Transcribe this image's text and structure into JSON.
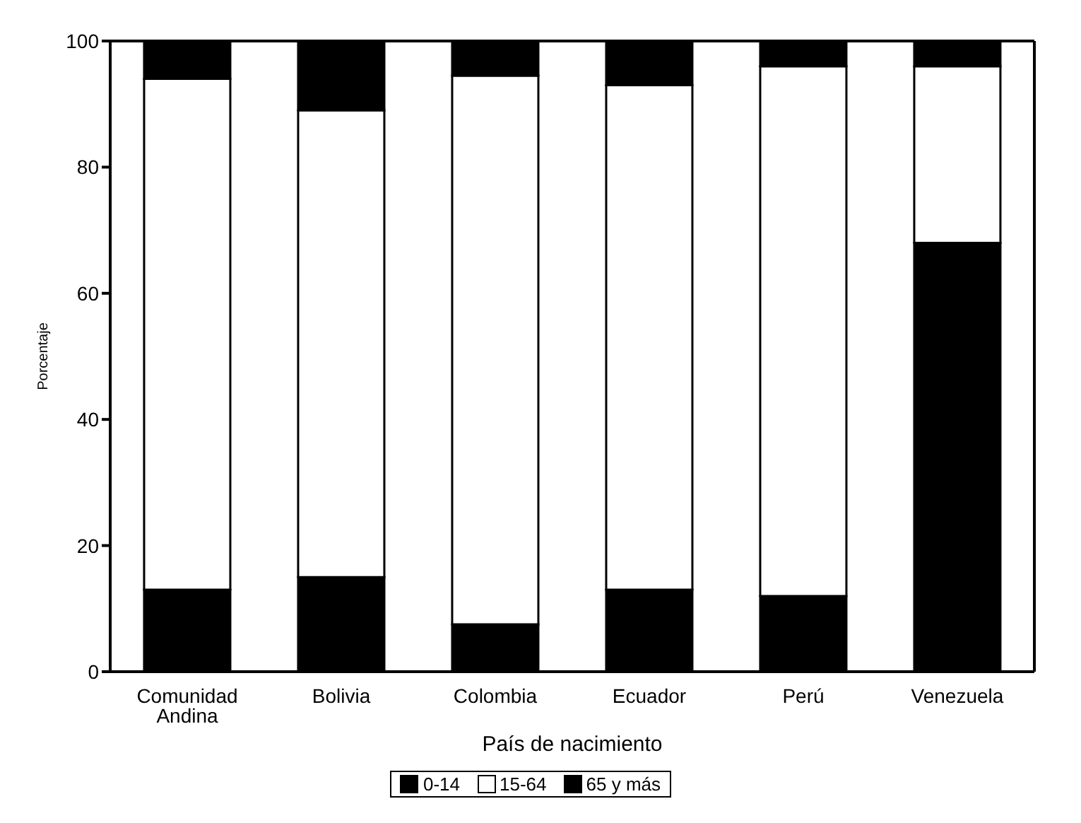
{
  "chart_data": {
    "type": "bar",
    "stacked": true,
    "xlabel": "País de nacimiento",
    "ylabel": "Porcentaje",
    "categories": [
      "Comunidad Andina",
      "Bolivia",
      "Colombia",
      "Ecuador",
      "Perú",
      "Venezuela"
    ],
    "series": [
      {
        "name": "0-14",
        "color": "#000000",
        "values": [
          13,
          15,
          7.5,
          13,
          12,
          68
        ]
      },
      {
        "name": "15-64",
        "color": "#ffffff",
        "values": [
          81,
          74,
          87,
          80,
          84,
          28
        ]
      },
      {
        "name": "65 y más",
        "color": "#000000",
        "values": [
          6,
          11,
          5.5,
          7,
          4,
          4
        ]
      }
    ],
    "ylim": [
      0,
      100
    ],
    "yticks": [
      0,
      20,
      40,
      60,
      80,
      100
    ],
    "grid": false,
    "legend": "bottom"
  }
}
